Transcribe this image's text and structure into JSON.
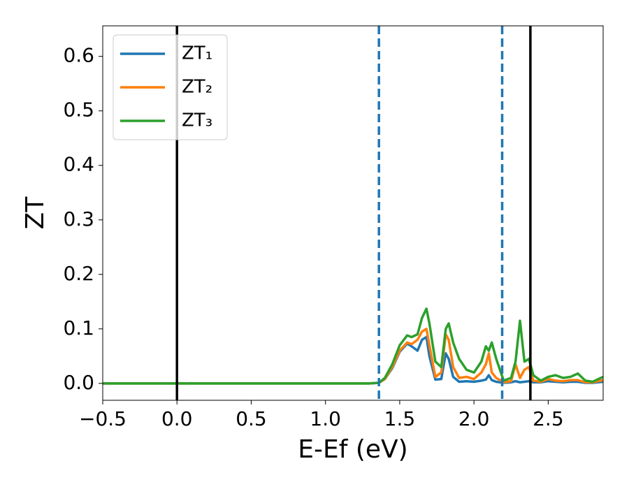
{
  "chart_data": {
    "type": "line",
    "xlabel": "E-Ef (eV)",
    "ylabel": "ZT",
    "x": [
      -0.5,
      0,
      0.5,
      1.0,
      1.3,
      1.36,
      1.4,
      1.45,
      1.5,
      1.55,
      1.58,
      1.62,
      1.65,
      1.68,
      1.7,
      1.74,
      1.78,
      1.81,
      1.83,
      1.86,
      1.9,
      1.95,
      2.0,
      2.05,
      2.08,
      2.1,
      2.12,
      2.15,
      2.2,
      2.25,
      2.28,
      2.31,
      2.34,
      2.37,
      2.4,
      2.45,
      2.5,
      2.55,
      2.6,
      2.65,
      2.7,
      2.75,
      2.8,
      2.87
    ],
    "series": [
      {
        "name": "ZT₁",
        "color": "#1f77b4",
        "values": [
          0,
          0,
          0,
          0,
          0,
          0.001,
          0.008,
          0.028,
          0.058,
          0.073,
          0.068,
          0.06,
          0.08,
          0.085,
          0.05,
          0.007,
          0.008,
          0.055,
          0.045,
          0.012,
          0.003,
          0.004,
          0.003,
          0.005,
          0.007,
          0.015,
          0.006,
          0.003,
          0.001,
          0.002,
          0.004,
          0.002,
          0.003,
          0.004,
          0.002,
          0.002,
          0.004,
          0.003,
          0.002,
          0.003,
          0.003,
          0.001,
          0.001,
          0.003
        ]
      },
      {
        "name": "ZT₂",
        "color": "#ff7f0e",
        "values": [
          0,
          0,
          0,
          0,
          0,
          0.001,
          0.008,
          0.03,
          0.06,
          0.075,
          0.072,
          0.08,
          0.095,
          0.1,
          0.07,
          0.012,
          0.02,
          0.09,
          0.08,
          0.03,
          0.01,
          0.012,
          0.008,
          0.02,
          0.035,
          0.055,
          0.02,
          0.01,
          0.002,
          0.004,
          0.035,
          0.01,
          0.025,
          0.03,
          0.005,
          0.003,
          0.008,
          0.005,
          0.004,
          0.006,
          0.006,
          0.002,
          0.002,
          0.006
        ]
      },
      {
        "name": "ZT₃",
        "color": "#2ca02c",
        "values": [
          0,
          0,
          0,
          0,
          0,
          0.001,
          0.01,
          0.035,
          0.07,
          0.088,
          0.085,
          0.09,
          0.12,
          0.137,
          0.11,
          0.04,
          0.03,
          0.1,
          0.11,
          0.075,
          0.045,
          0.025,
          0.02,
          0.04,
          0.068,
          0.06,
          0.075,
          0.045,
          0.005,
          0.01,
          0.04,
          0.115,
          0.04,
          0.045,
          0.015,
          0.005,
          0.012,
          0.015,
          0.01,
          0.012,
          0.018,
          0.005,
          0.003,
          0.012
        ]
      }
    ],
    "vlines": [
      {
        "x": 0,
        "color": "#000000",
        "style": "solid"
      },
      {
        "x": 1.36,
        "color": "#1f77b4",
        "style": "dashed"
      },
      {
        "x": 2.19,
        "color": "#1f77b4",
        "style": "dashed"
      },
      {
        "x": 2.38,
        "color": "#000000",
        "style": "solid"
      }
    ],
    "xlim": [
      -0.5,
      2.87
    ],
    "ylim": [
      -0.031,
      0.656
    ],
    "xticks": [
      {
        "value": -0.5,
        "label": "−0.5"
      },
      {
        "value": 0,
        "label": "0.0"
      },
      0.5,
      {
        "value": 1,
        "label": "1.0"
      },
      1.5,
      {
        "value": 2,
        "label": "2.0"
      },
      2.5
    ],
    "yticks": [
      {
        "value": 0,
        "label": "0.0"
      },
      0.1,
      0.2,
      0.3,
      0.4,
      0.5,
      0.6
    ],
    "legend": "upper left"
  }
}
